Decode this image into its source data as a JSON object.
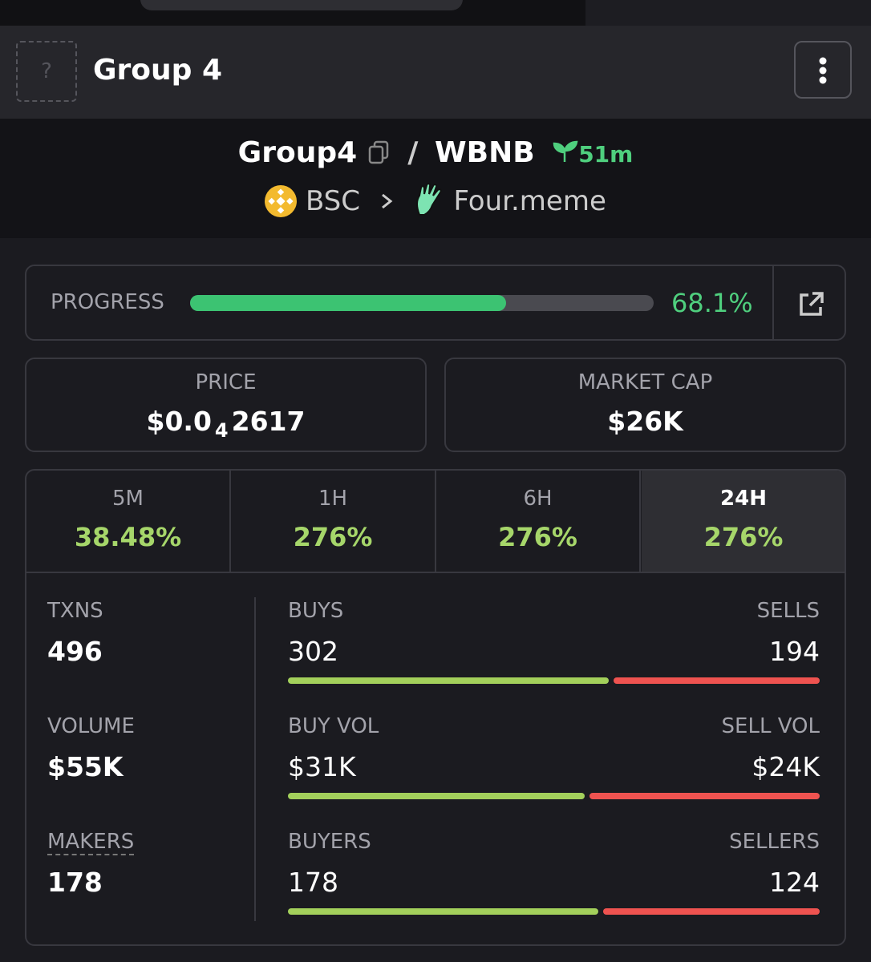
{
  "header": {
    "avatar": "?",
    "title": "Group 4"
  },
  "pair": {
    "base": "Group4",
    "separator": "/",
    "quote": "WBNB",
    "age": "51m",
    "chain": "BSC",
    "dex": "Four.meme"
  },
  "progress": {
    "label": "PROGRESS",
    "value": 68.1,
    "value_label": "68.1%"
  },
  "price": {
    "label": "PRICE",
    "prefix": "$0.0",
    "zeros": "4",
    "digits": "2617"
  },
  "market_cap": {
    "label": "MARKET CAP",
    "value": "$26K"
  },
  "timeframes": [
    {
      "label": "5M",
      "change": "38.48%"
    },
    {
      "label": "1H",
      "change": "276%"
    },
    {
      "label": "6H",
      "change": "276%"
    },
    {
      "label": "24H",
      "change": "276%"
    }
  ],
  "selected_timeframe": 3,
  "stats": [
    {
      "label": "TXNS",
      "value": 496
    },
    {
      "label": "VOLUME",
      "value": "$55K"
    },
    {
      "label": "MAKERS",
      "value": 178
    }
  ],
  "splits": [
    {
      "buy_label": "BUYS",
      "sell_label": "SELLS",
      "buy": 302,
      "sell": 194
    },
    {
      "buy_label": "BUY VOL",
      "sell_label": "SELL VOL",
      "buy": {
        "value": 31000,
        "label": "$31K"
      },
      "sell": {
        "value": 24000,
        "label": "$24K"
      }
    },
    {
      "buy_label": "BUYERS",
      "sell_label": "SELLERS",
      "buy": 178,
      "sell": 124
    }
  ]
}
